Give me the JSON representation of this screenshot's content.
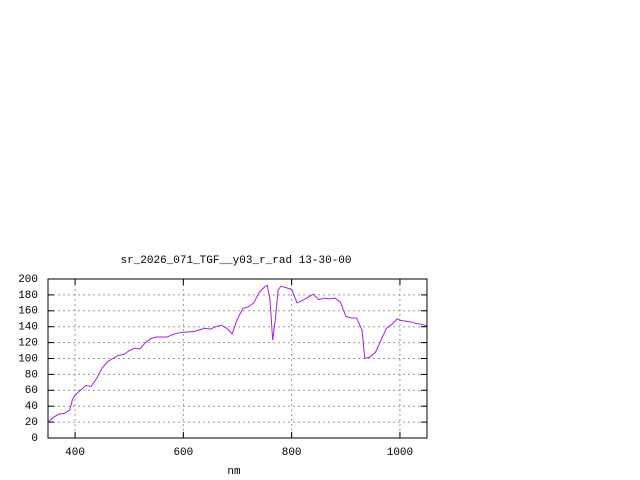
{
  "chart_data": {
    "type": "line",
    "title": "sr_2026_071_TGF__y03_r_rad 13-30-00",
    "x_label": "nm",
    "x": [
      350,
      360,
      370,
      380,
      390,
      395,
      400,
      410,
      420,
      430,
      440,
      450,
      460,
      470,
      480,
      490,
      500,
      510,
      520,
      530,
      540,
      550,
      560,
      570,
      580,
      590,
      600,
      620,
      640,
      650,
      660,
      670,
      680,
      690,
      700,
      710,
      720,
      730,
      740,
      750,
      755,
      760,
      765,
      770,
      775,
      780,
      790,
      800,
      810,
      820,
      830,
      840,
      850,
      860,
      870,
      880,
      890,
      900,
      910,
      920,
      930,
      935,
      945,
      955,
      965,
      975,
      985,
      995,
      1000,
      1010,
      1020,
      1030,
      1040,
      1050
    ],
    "series": [
      {
        "color": "#a020f0",
        "values": [
          20,
          26,
          30,
          31,
          35,
          48,
          54,
          60,
          66,
          65,
          75,
          88,
          96,
          100,
          104,
          105,
          110,
          113,
          112,
          120,
          125,
          127,
          127,
          127,
          130,
          132,
          133,
          134,
          138,
          137,
          140,
          142,
          138,
          131,
          150,
          163,
          165,
          170,
          183,
          190,
          192,
          174,
          123,
          150,
          186,
          191,
          189,
          187,
          170,
          173,
          177,
          181,
          174,
          176,
          175,
          176,
          171,
          153,
          151,
          151,
          136,
          100,
          102,
          108,
          123,
          138,
          143,
          150,
          148,
          147,
          146,
          144,
          143,
          141
        ]
      }
    ],
    "xlim": [
      350,
      1050
    ],
    "ylim": [
      0,
      200
    ],
    "xticks": [
      400,
      600,
      800,
      1000
    ],
    "yticks": [
      0,
      20,
      40,
      60,
      80,
      100,
      120,
      140,
      160,
      180,
      200
    ],
    "grid": true
  }
}
